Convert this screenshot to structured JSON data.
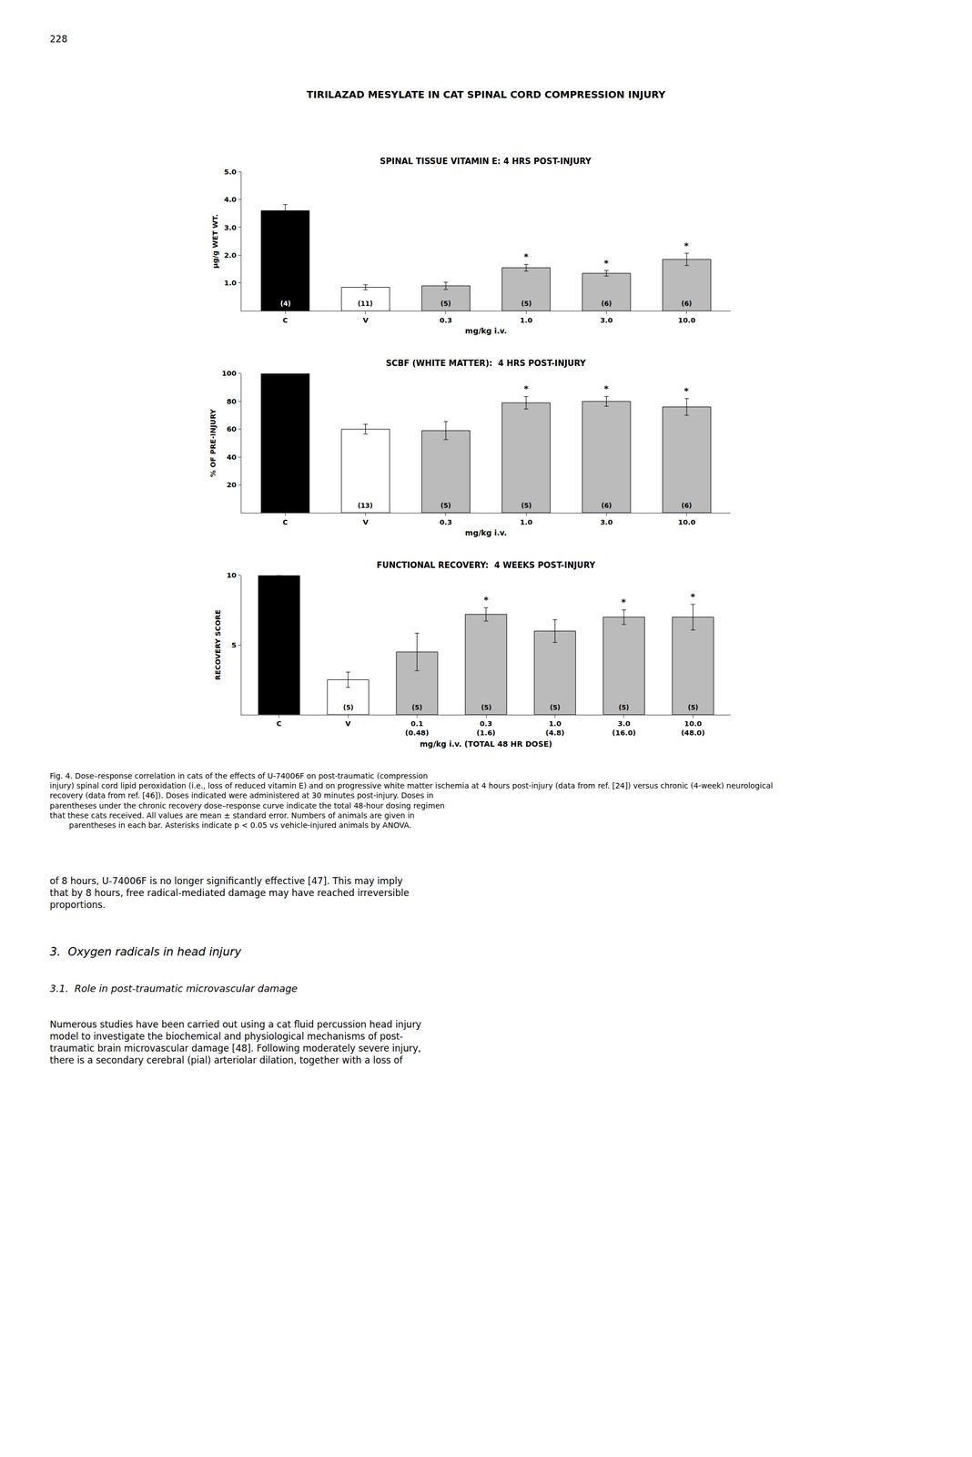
{
  "title": "TIRILAZAD MESYLATE IN CAT SPINAL CORD COMPRESSION INJURY",
  "annotations": [
    "228",
    "Fig. 4. Dose–response correlation in cats of the effects of U-74006F on post-traumatic (compression\ninjury) spinal cord lipid peroxidation (i.e., loss of reduced vitamin E) and on progressive white matter ischemia at 4 hours post-injury (data from ref. [24]) versus chronic (4-week) neurological\nrecovery (data from ref. [46]). Doses indicated were administered at 30 minutes post-injury. Doses in\nparentheses under the chronic recovery dose–response curve indicate the total 48-hour dosing regimen\nthat these cats received. All values are mean ± standard error. Numbers of animals are given in\n        parentheses in each bar. Asterisks indicate p < 0.05 vs vehicle-injured animals by ANOVA.",
    "of 8 hours, U-74006F is no longer significantly effective [47]. This may imply\nthat by 8 hours, free radical-mediated damage may have reached irreversible\nproportions.",
    "3.  Oxygen radicals in head injury",
    "3.1.  Role in post-traumatic microvascular damage",
    "Numerous studies have been carried out using a cat fluid percussion head injury\nmodel to investigate the biochemical and physiological mechanisms of post-\ntraumatic brain microvascular damage [48]. Following moderately severe injury,\nthere is a secondary cerebral (pial) arteriolar dilation, together with a loss of"
  ],
  "chart_data": [
    {
      "type": "bar",
      "title": "SPINAL TISSUE VITAMIN E: 4 HRS POST-INJURY",
      "ylabel": "μg/g WET WT.",
      "xlabel": "mg/kg i.v.",
      "categories": [
        "C",
        "V",
        "0.3",
        "1.0",
        "3.0",
        "10.0"
      ],
      "values": [
        3.6,
        0.85,
        0.9,
        1.55,
        1.35,
        1.85
      ],
      "errors": [
        0.22,
        0.09,
        0.13,
        0.12,
        0.1,
        0.22
      ],
      "n_labels": [
        "(4)",
        "(11)",
        "(5)",
        "(5)",
        "(6)",
        "(6)"
      ],
      "asterisks": [
        null,
        null,
        null,
        "*",
        "*",
        "*"
      ],
      "colors": [
        "#000000",
        "#ffffff",
        "#bbbbbb",
        "#bbbbbb",
        "#bbbbbb",
        "#bbbbbb"
      ],
      "ylim": [
        0,
        5.0
      ],
      "yticks": [
        {
          "value": 1.0,
          "label": "1.0"
        },
        {
          "value": 2.0,
          "label": "2.0"
        },
        {
          "value": 3.0,
          "label": "3.0"
        },
        {
          "value": 4.0,
          "label": "4.0"
        },
        {
          "value": 5.0,
          "label": "5.0"
        }
      ],
      "grid": false
    },
    {
      "type": "bar",
      "title": "SCBF (WHITE MATTER):  4 HRS POST-INJURY",
      "ylabel": "% OF PRE-INJURY",
      "xlabel": "mg/kg i.v.",
      "categories": [
        "C",
        "V",
        "0.3",
        "1.0",
        "3.0",
        "10.0"
      ],
      "values": [
        100,
        60,
        59,
        79,
        80,
        76
      ],
      "errors": [
        0,
        3.5,
        6.5,
        4.5,
        3.5,
        6.0
      ],
      "n_labels": [
        null,
        "(13)",
        "(5)",
        "(5)",
        "(6)",
        "(6)"
      ],
      "asterisks": [
        null,
        null,
        null,
        "*",
        "*",
        "*"
      ],
      "colors": [
        "#000000",
        "#ffffff",
        "#bbbbbb",
        "#bbbbbb",
        "#bbbbbb",
        "#bbbbbb"
      ],
      "ylim": [
        0,
        100
      ],
      "yticks": [
        20,
        40,
        60,
        80,
        100
      ],
      "grid": false
    },
    {
      "type": "bar",
      "title": "FUNCTIONAL RECOVERY:  4 WEEKS POST-INJURY",
      "ylabel": "RECOVERY SCORE",
      "xlabel": "mg/kg i.v. (TOTAL 48 HR DOSE)",
      "categories": [
        "C",
        "V",
        "0.1\n(0.48)",
        "0.3\n(1.6)",
        "1.0\n(4.8)",
        "3.0\n(16.0)",
        "10.0\n(48.0)"
      ],
      "values": [
        10.0,
        2.5,
        4.5,
        7.2,
        6.0,
        7.0,
        7.0
      ],
      "errors": [
        0.0,
        0.55,
        1.35,
        0.48,
        0.82,
        0.52,
        0.92
      ],
      "n_labels": [
        null,
        "(5)",
        "(5)",
        "(5)",
        "(5)",
        "(5)",
        "(5)"
      ],
      "asterisks": [
        null,
        null,
        null,
        "*",
        null,
        "*",
        "*"
      ],
      "colors": [
        "#000000",
        "#ffffff",
        "#bbbbbb",
        "#bbbbbb",
        "#bbbbbb",
        "#bbbbbb",
        "#bbbbbb"
      ],
      "ylim": [
        0,
        10
      ],
      "yticks": [
        5,
        10
      ],
      "grid": false
    }
  ]
}
